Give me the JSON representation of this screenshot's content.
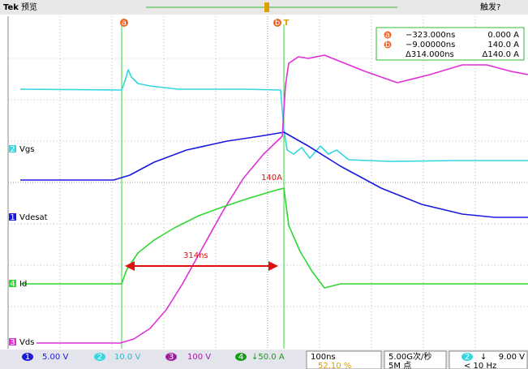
{
  "header": {
    "brand": "Tek",
    "mode": "预览",
    "trigger_state": "触发?"
  },
  "cursors": {
    "a": {
      "marker": "a",
      "time": "−323.000ns",
      "value": "0.000 A"
    },
    "b": {
      "marker": "b",
      "time": "−9.00000ns",
      "value": "140.0 A"
    },
    "delta": {
      "time": "Δ314.000ns",
      "value": "Δ140.0 A"
    },
    "trigger_marker": "T"
  },
  "channels": [
    {
      "number": "2",
      "label": "Vgs"
    },
    {
      "number": "1",
      "label": "Vdesat"
    },
    {
      "number": "4",
      "label": "Id"
    },
    {
      "number": "3",
      "label": "Vds"
    }
  ],
  "annotations": {
    "peak_current": "140A",
    "duration": "314ns"
  },
  "footer": {
    "scales": [
      {
        "number": "1",
        "scale": "5.00 V"
      },
      {
        "number": "2",
        "scale": "10.0 V"
      },
      {
        "number": "3",
        "scale": "100 V"
      },
      {
        "number": "4",
        "scale": "↓50.0 A"
      }
    ],
    "timebase": "100ns",
    "position": "52.10 %",
    "sample_rate": "5.00G次/秒",
    "record_length": "5M 点",
    "trigger": {
      "number": "2",
      "slope": "↓",
      "level": "9.00 V",
      "frequency": "< 10 Hz"
    }
  }
}
